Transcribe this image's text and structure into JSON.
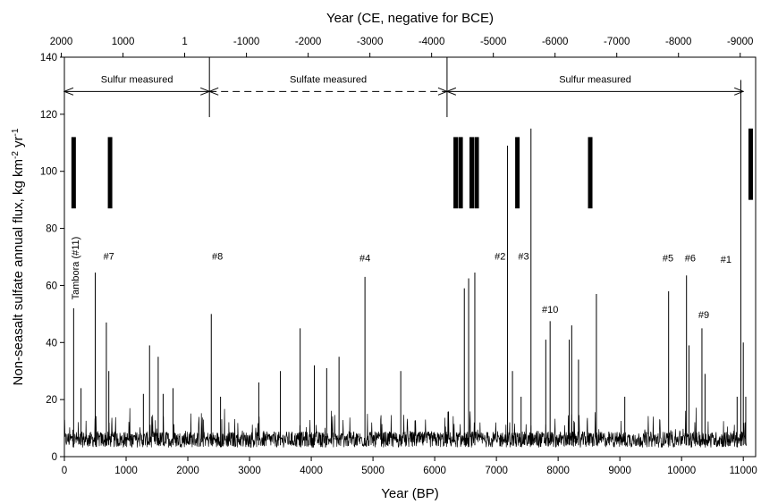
{
  "chart_data": {
    "type": "line",
    "xlabel": "Year (BP)",
    "ylabel": "Non-seasalt sulfate annual flux, kg km",
    "ylabel_sup1": "-2",
    "ylabel_mid": " yr",
    "ylabel_sup2": "-1",
    "x2label": "Year (CE, negative for BCE)",
    "xlim": [
      0,
      11200
    ],
    "ylim": [
      0,
      140
    ],
    "x_ticks": [
      0,
      1000,
      2000,
      3000,
      4000,
      5000,
      6000,
      7000,
      8000,
      9000,
      10000,
      11000
    ],
    "x_ticklabels": [
      "0",
      "1000",
      "2000",
      "3000",
      "4000",
      "5000",
      "6000",
      "7000",
      "8000",
      "9000",
      "10000",
      "11000"
    ],
    "y_ticks": [
      0,
      20,
      40,
      60,
      80,
      100,
      120,
      140
    ],
    "y_ticklabels": [
      "0",
      "20",
      "40",
      "60",
      "80",
      "100",
      "120",
      "140"
    ],
    "x2_ticks_ce": [
      2000,
      1000,
      1,
      -1000,
      -2000,
      -3000,
      -4000,
      -5000,
      -6000,
      -7000,
      -8000,
      -9000
    ],
    "x2_ticklabels": [
      "2000",
      "1000",
      "1",
      "-1000",
      "-2000",
      "-3000",
      "-4000",
      "-5000",
      "-6000",
      "-7000",
      "-8000",
      "-9000"
    ],
    "ce_bp_offset": 1950,
    "segments": [
      {
        "label": "Sulfur measured",
        "x_start": 0,
        "x_end": 2350,
        "style": "solid"
      },
      {
        "label": "Sulfate measured",
        "x_start": 2350,
        "x_end": 6200,
        "style": "dashed"
      },
      {
        "label": "Sulfur measured",
        "x_start": 6200,
        "x_end": 11000,
        "style": "solid"
      }
    ],
    "segment_dividers": [
      2350,
      6200
    ],
    "divider_range": [
      119,
      140
    ],
    "arrow_y": 128,
    "bars": [
      {
        "x": 150,
        "y_low": 87,
        "y_high": 112
      },
      {
        "x": 740,
        "y_low": 87,
        "y_high": 112
      },
      {
        "x": 6340,
        "y_low": 87,
        "y_high": 112
      },
      {
        "x": 6420,
        "y_low": 87,
        "y_high": 112
      },
      {
        "x": 6600,
        "y_low": 87,
        "y_high": 112
      },
      {
        "x": 6680,
        "y_low": 87,
        "y_high": 112
      },
      {
        "x": 7340,
        "y_low": 87,
        "y_high": 112
      },
      {
        "x": 8520,
        "y_low": 87,
        "y_high": 112
      },
      {
        "x": 11120,
        "y_low": 90,
        "y_high": 115
      }
    ],
    "peaks": [
      {
        "x": 150,
        "y": 52
      },
      {
        "x": 270,
        "y": 24
      },
      {
        "x": 500,
        "y": 64.5
      },
      {
        "x": 680,
        "y": 47
      },
      {
        "x": 720,
        "y": 30
      },
      {
        "x": 1280,
        "y": 22
      },
      {
        "x": 1380,
        "y": 39
      },
      {
        "x": 1520,
        "y": 35
      },
      {
        "x": 1600,
        "y": 22
      },
      {
        "x": 1760,
        "y": 24
      },
      {
        "x": 2380,
        "y": 50
      },
      {
        "x": 2530,
        "y": 21
      },
      {
        "x": 3150,
        "y": 26
      },
      {
        "x": 3500,
        "y": 30
      },
      {
        "x": 3820,
        "y": 45
      },
      {
        "x": 4050,
        "y": 32
      },
      {
        "x": 4250,
        "y": 31
      },
      {
        "x": 4450,
        "y": 35
      },
      {
        "x": 4870,
        "y": 63
      },
      {
        "x": 5450,
        "y": 30
      },
      {
        "x": 6480,
        "y": 59
      },
      {
        "x": 6550,
        "y": 62.5
      },
      {
        "x": 6650,
        "y": 64.5
      },
      {
        "x": 7180,
        "y": 109
      },
      {
        "x": 7260,
        "y": 30
      },
      {
        "x": 7400,
        "y": 21
      },
      {
        "x": 7560,
        "y": 115
      },
      {
        "x": 7800,
        "y": 41
      },
      {
        "x": 7870,
        "y": 47.5
      },
      {
        "x": 8180,
        "y": 41
      },
      {
        "x": 8220,
        "y": 46
      },
      {
        "x": 8330,
        "y": 34
      },
      {
        "x": 8620,
        "y": 57
      },
      {
        "x": 9080,
        "y": 21
      },
      {
        "x": 9790,
        "y": 58
      },
      {
        "x": 10080,
        "y": 63.5
      },
      {
        "x": 10120,
        "y": 39
      },
      {
        "x": 10330,
        "y": 45
      },
      {
        "x": 10380,
        "y": 29
      },
      {
        "x": 10900,
        "y": 21
      },
      {
        "x": 10960,
        "y": 132
      },
      {
        "x": 11000,
        "y": 40
      },
      {
        "x": 11040,
        "y": 21
      }
    ],
    "series_baseline": {
      "mean": 6,
      "spread": 3.5,
      "start": 0,
      "end": 11050,
      "step": 5
    },
    "annotations": [
      {
        "text": "Tambora (#11)",
        "x": 230,
        "y": 55,
        "rotate": true
      },
      {
        "text": "#7",
        "x": 720,
        "y": 69
      },
      {
        "text": "#8",
        "x": 2480,
        "y": 69
      },
      {
        "text": "#4",
        "x": 4870,
        "y": 68.5
      },
      {
        "text": "#2",
        "x": 7060,
        "y": 69
      },
      {
        "text": "#3",
        "x": 7440,
        "y": 69
      },
      {
        "text": "#10",
        "x": 7870,
        "y": 50.5
      },
      {
        "text": "#5",
        "x": 9780,
        "y": 68.5
      },
      {
        "text": "#6",
        "x": 10140,
        "y": 68.5
      },
      {
        "text": "#9",
        "x": 10360,
        "y": 48.5
      },
      {
        "text": "#1",
        "x": 10720,
        "y": 68
      }
    ]
  }
}
